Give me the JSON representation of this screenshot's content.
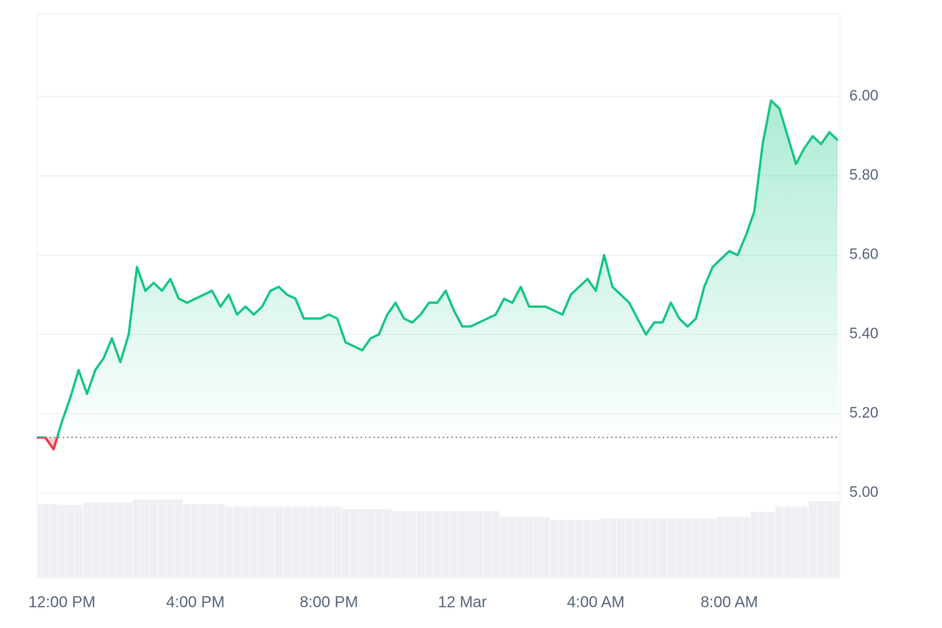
{
  "chart_data": {
    "type": "line",
    "x": [
      "11 Mar 11:15",
      "11 Mar 11:30",
      "11 Mar 11:45",
      "11 Mar 12:00",
      "11 Mar 12:15",
      "11 Mar 12:30",
      "11 Mar 12:45",
      "11 Mar 13:00",
      "11 Mar 13:15",
      "11 Mar 13:30",
      "11 Mar 13:45",
      "11 Mar 14:00",
      "11 Mar 14:15",
      "11 Mar 14:30",
      "11 Mar 14:45",
      "11 Mar 15:00",
      "11 Mar 15:15",
      "11 Mar 15:30",
      "11 Mar 15:45",
      "11 Mar 16:00",
      "11 Mar 16:15",
      "11 Mar 16:30",
      "11 Mar 16:45",
      "11 Mar 17:00",
      "11 Mar 17:15",
      "11 Mar 17:30",
      "11 Mar 17:45",
      "11 Mar 18:00",
      "11 Mar 18:15",
      "11 Mar 18:30",
      "11 Mar 18:45",
      "11 Mar 19:00",
      "11 Mar 19:15",
      "11 Mar 19:30",
      "11 Mar 19:45",
      "11 Mar 20:00",
      "11 Mar 20:15",
      "11 Mar 20:30",
      "11 Mar 20:45",
      "11 Mar 21:00",
      "11 Mar 21:15",
      "11 Mar 21:30",
      "11 Mar 21:45",
      "11 Mar 22:00",
      "11 Mar 22:15",
      "11 Mar 22:30",
      "11 Mar 22:45",
      "11 Mar 23:00",
      "11 Mar 23:15",
      "11 Mar 23:30",
      "11 Mar 23:45",
      "12 Mar 00:00",
      "12 Mar 00:15",
      "12 Mar 00:30",
      "12 Mar 00:45",
      "12 Mar 01:00",
      "12 Mar 01:15",
      "12 Mar 01:30",
      "12 Mar 01:45",
      "12 Mar 02:00",
      "12 Mar 02:15",
      "12 Mar 02:30",
      "12 Mar 02:45",
      "12 Mar 03:00",
      "12 Mar 03:15",
      "12 Mar 03:30",
      "12 Mar 03:45",
      "12 Mar 04:00",
      "12 Mar 04:15",
      "12 Mar 04:30",
      "12 Mar 04:45",
      "12 Mar 05:00",
      "12 Mar 05:15",
      "12 Mar 05:30",
      "12 Mar 05:45",
      "12 Mar 06:00",
      "12 Mar 06:15",
      "12 Mar 06:30",
      "12 Mar 06:45",
      "12 Mar 07:00",
      "12 Mar 07:15",
      "12 Mar 07:30",
      "12 Mar 07:45",
      "12 Mar 08:00",
      "12 Mar 08:15",
      "12 Mar 08:30",
      "12 Mar 08:45",
      "12 Mar 09:00",
      "12 Mar 09:15",
      "12 Mar 09:30",
      "12 Mar 09:45",
      "12 Mar 10:00",
      "12 Mar 10:15",
      "12 Mar 10:30",
      "12 Mar 10:45",
      "12 Mar 11:00",
      "12 Mar 11:15"
    ],
    "values": [
      5.14,
      5.14,
      5.11,
      5.18,
      5.24,
      5.31,
      5.25,
      5.31,
      5.34,
      5.39,
      5.33,
      5.4,
      5.57,
      5.51,
      5.53,
      5.51,
      5.54,
      5.49,
      5.48,
      5.49,
      5.5,
      5.51,
      5.47,
      5.5,
      5.45,
      5.47,
      5.45,
      5.47,
      5.51,
      5.52,
      5.5,
      5.49,
      5.44,
      5.44,
      5.44,
      5.45,
      5.44,
      5.38,
      5.37,
      5.36,
      5.39,
      5.4,
      5.45,
      5.48,
      5.44,
      5.43,
      5.45,
      5.48,
      5.48,
      5.51,
      5.46,
      5.42,
      5.42,
      5.43,
      5.44,
      5.45,
      5.49,
      5.48,
      5.52,
      5.47,
      5.47,
      5.47,
      5.46,
      5.45,
      5.5,
      5.52,
      5.54,
      5.51,
      5.6,
      5.52,
      5.5,
      5.48,
      5.44,
      5.4,
      5.43,
      5.43,
      5.48,
      5.44,
      5.42,
      5.44,
      5.52,
      5.57,
      5.59,
      5.61,
      5.6,
      5.65,
      5.71,
      5.88,
      5.99,
      5.97,
      5.9,
      5.83,
      5.87,
      5.9,
      5.88,
      5.91,
      5.89
    ],
    "volume": [
      95,
      95,
      95,
      94,
      94,
      94,
      97,
      97,
      97,
      97,
      97,
      97,
      101,
      101,
      101,
      101,
      101,
      101,
      95,
      95,
      95,
      95,
      95,
      92,
      92,
      92,
      92,
      92,
      92,
      92,
      92,
      92,
      92,
      92,
      92,
      92,
      92,
      89,
      89,
      89,
      89,
      89,
      89,
      86,
      86,
      86,
      86,
      86,
      86,
      86,
      86,
      86,
      86,
      86,
      86,
      86,
      79,
      79,
      79,
      79,
      79,
      79,
      75,
      75,
      75,
      75,
      75,
      75,
      77,
      77,
      77,
      77,
      77,
      77,
      77,
      77,
      77,
      77,
      77,
      77,
      77,
      77,
      79,
      79,
      79,
      79,
      85,
      85,
      85,
      92,
      92,
      92,
      92,
      99,
      99,
      99,
      99
    ],
    "volume_lim": [
      0,
      719
    ],
    "baseline": 5.14,
    "color": "#16c784",
    "down_color": "#ea3943",
    "volume_color": "#eef0f4",
    "xlim": [
      "11 Mar 11:15",
      "12 Mar 11:19"
    ],
    "xticks": [
      {
        "value": "11 Mar 12:00",
        "label": "12:00 PM"
      },
      {
        "value": "11 Mar 16:00",
        "label": "4:00 PM"
      },
      {
        "value": "11 Mar 20:00",
        "label": "8:00 PM"
      },
      {
        "value": "12 Mar 00:00",
        "label": "12 Mar"
      },
      {
        "value": "12 Mar 04:00",
        "label": "4:00 AM"
      },
      {
        "value": "12 Mar 08:00",
        "label": "8:00 AM"
      }
    ],
    "ylim": [
      4.784,
      6.208
    ],
    "yticks": [
      {
        "value": 5,
        "label": "5.00"
      },
      {
        "value": 5.2,
        "label": "5.20"
      },
      {
        "value": 5.4,
        "label": "5.40"
      },
      {
        "value": 5.6,
        "label": "5.60"
      },
      {
        "value": 5.8,
        "label": "5.80"
      },
      {
        "value": 6,
        "label": "6.00"
      }
    ],
    "grid": true
  }
}
